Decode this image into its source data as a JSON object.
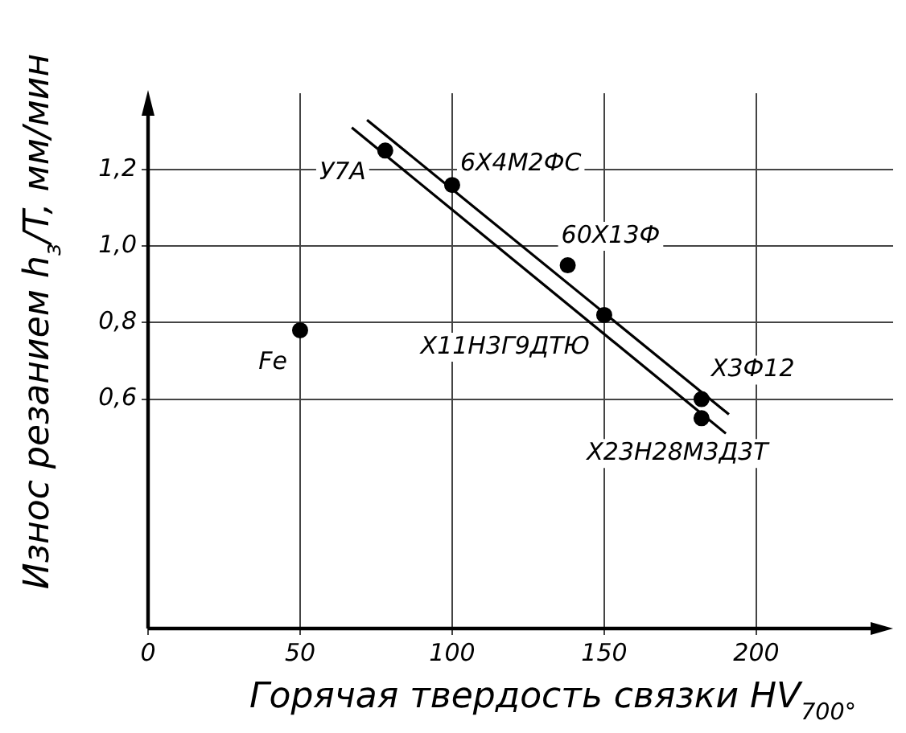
{
  "chart_data": {
    "type": "scatter",
    "xlabel": "Горячая твердость связки HV$_{700°}$",
    "ylabel": "Износ резанием h$_{з}$/T, мм/мин",
    "xlim": [
      0,
      245
    ],
    "ylim": [
      0,
      1.4
    ],
    "xticks": [
      0,
      50,
      100,
      150,
      200
    ],
    "yticks": [
      {
        "value": 0.6,
        "label": "0,6"
      },
      {
        "value": 0.8,
        "label": "0,8"
      },
      {
        "value": 1.0,
        "label": "1,0"
      },
      {
        "value": 1.2,
        "label": "1,2"
      }
    ],
    "grid": true,
    "legend": false,
    "series": [
      {
        "marker": "circle",
        "color": "#000000",
        "x": [
          50,
          78,
          100,
          138,
          150,
          182,
          182
        ],
        "values": [
          0.78,
          1.25,
          1.16,
          0.95,
          0.82,
          0.6,
          0.55
        ]
      },
      {
        "type": "line",
        "marker": "none",
        "color": "#000000",
        "line_style": "solid",
        "x": [
          72,
          191
        ],
        "values": [
          1.33,
          0.56
        ]
      },
      {
        "type": "line",
        "marker": "none",
        "color": "#000000",
        "line_style": "solid",
        "x": [
          67,
          190
        ],
        "values": [
          1.31,
          0.51
        ]
      }
    ],
    "annotations": [
      {
        "text": "Fe",
        "x": 50,
        "y": 0.78
      },
      {
        "text": "У7А",
        "x": 78,
        "y": 1.25
      },
      {
        "text": "6Х4М2ФС",
        "x": 100,
        "y": 1.16
      },
      {
        "text": "60Х13Ф",
        "x": 138,
        "y": 0.95
      },
      {
        "text": "Х11Н3Г9ДТЮ",
        "x": 150,
        "y": 0.82
      },
      {
        "text": "Х3Ф12",
        "x": 182,
        "y": 0.6
      },
      {
        "text": "Х23Н28М3Д3Т",
        "x": 182,
        "y": 0.55
      }
    ]
  }
}
